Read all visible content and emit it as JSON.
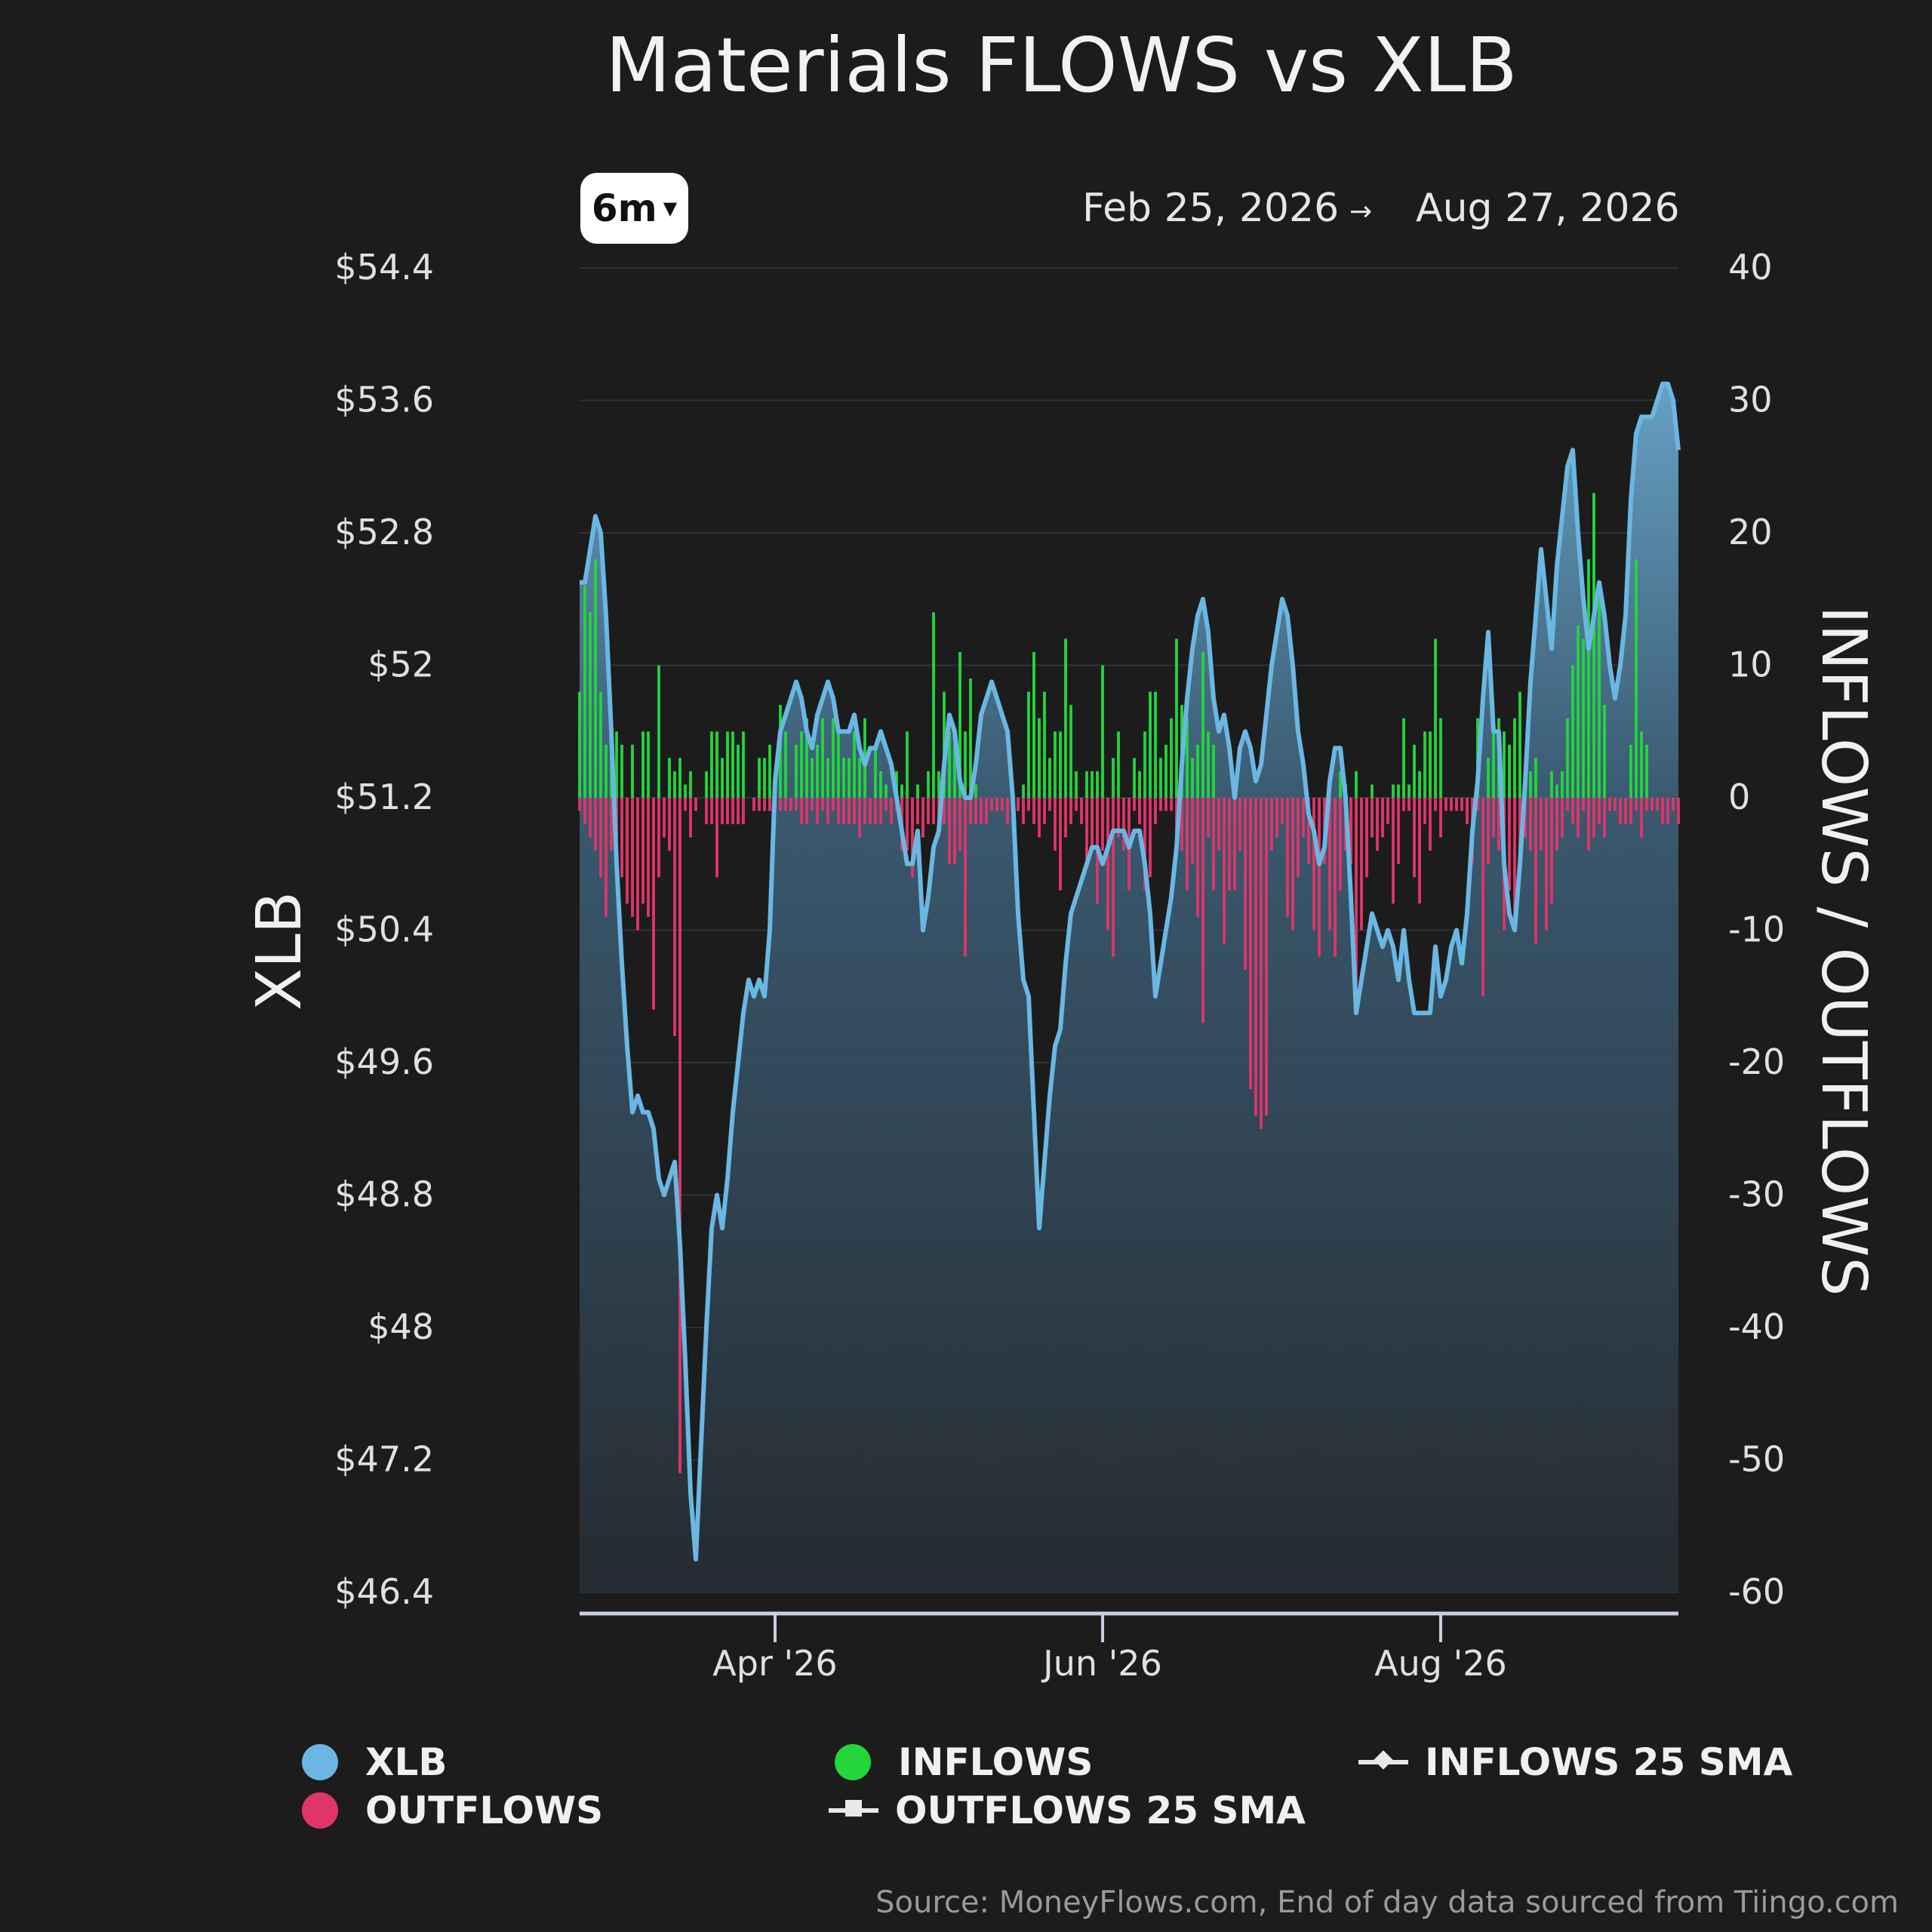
{
  "title": "Materials FLOWS vs XLB",
  "range_selector": {
    "label": "6m"
  },
  "date_range": {
    "start": "Feb 25, 2026",
    "arrow": "→",
    "end": "Aug 27, 2026"
  },
  "source": "Source: MoneyFlows.com, End of day data sourced from Tiingo.com",
  "colors": {
    "xlb": "#6ab7e3",
    "inflows": "#22d63c",
    "outflows": "#e0356a",
    "background": "#1c1c1c"
  },
  "legend": [
    {
      "label": "XLB",
      "symbol": "dot",
      "color": "#6ab7e3"
    },
    {
      "label": "INFLOWS",
      "symbol": "dot",
      "color": "#22d63c"
    },
    {
      "label": "INFLOWS 25 SMA",
      "symbol": "line-diamond",
      "color": "#e8e8e8"
    },
    {
      "label": "OUTFLOWS",
      "symbol": "dot",
      "color": "#e0356a"
    },
    {
      "label": "OUTFLOWS 25 SMA",
      "symbol": "line-square",
      "color": "#e8e8e8"
    }
  ],
  "chart_data": {
    "type": "bar",
    "title": "Materials FLOWS vs XLB",
    "ylabel_left": "XLB",
    "ylabel_right": "INFLOWS / OUTFLOWS",
    "y_left": {
      "min": 46.4,
      "max": 54.4,
      "ticks": [
        "$54.4",
        "$53.6",
        "$52.8",
        "$52",
        "$51.2",
        "$50.4",
        "$49.6",
        "$48.8",
        "$48",
        "$47.2",
        "$46.4"
      ]
    },
    "y_right": {
      "min": -60,
      "max": 40,
      "ticks": [
        "40",
        "30",
        "20",
        "10",
        "0",
        "-10",
        "-20",
        "-30",
        "-40",
        "-50",
        "-60"
      ]
    },
    "x_ticks": [
      {
        "label": "Apr '26",
        "index": 37
      },
      {
        "label": "Jun '26",
        "index": 99
      },
      {
        "label": "Aug '26",
        "index": 163
      }
    ],
    "grid": true,
    "legend_position": "bottom",
    "series": [
      {
        "name": "XLB",
        "kind": "area-line",
        "values": [
          52.5,
          52.5,
          52.7,
          52.9,
          52.8,
          52.3,
          51.6,
          50.8,
          50.2,
          49.7,
          49.3,
          49.4,
          49.3,
          49.3,
          49.2,
          48.9,
          48.8,
          48.9,
          49.0,
          48.5,
          47.8,
          47.0,
          46.6,
          47.3,
          48.0,
          48.6,
          48.8,
          48.6,
          48.9,
          49.3,
          49.6,
          49.9,
          50.1,
          50.0,
          50.1,
          50.0,
          50.4,
          51.3,
          51.6,
          51.7,
          51.8,
          51.9,
          51.8,
          51.6,
          51.5,
          51.7,
          51.8,
          51.9,
          51.8,
          51.6,
          51.6,
          51.6,
          51.7,
          51.5,
          51.4,
          51.5,
          51.5,
          51.6,
          51.5,
          51.4,
          51.2,
          51.0,
          50.8,
          50.8,
          51.0,
          50.4,
          50.6,
          50.9,
          51.0,
          51.4,
          51.7,
          51.6,
          51.3,
          51.2,
          51.2,
          51.4,
          51.7,
          51.8,
          51.9,
          51.8,
          51.7,
          51.6,
          51.2,
          50.5,
          50.1,
          50.0,
          49.3,
          48.6,
          49.0,
          49.4,
          49.7,
          49.8,
          50.2,
          50.5,
          50.6,
          50.7,
          50.8,
          50.9,
          50.9,
          50.8,
          50.9,
          51.0,
          51.0,
          51.0,
          50.9,
          51.0,
          51.0,
          50.8,
          50.5,
          50.0,
          50.2,
          50.4,
          50.6,
          50.9,
          51.4,
          51.8,
          52.1,
          52.3,
          52.4,
          52.2,
          51.8,
          51.6,
          51.7,
          51.5,
          51.2,
          51.5,
          51.6,
          51.5,
          51.3,
          51.4,
          51.7,
          52.0,
          52.2,
          52.4,
          52.3,
          52.0,
          51.6,
          51.4,
          51.1,
          51.0,
          50.8,
          50.9,
          51.3,
          51.5,
          51.5,
          51.2,
          50.6,
          49.9,
          50.1,
          50.3,
          50.5,
          50.4,
          50.3,
          50.4,
          50.3,
          50.1,
          50.4,
          50.1,
          49.9,
          49.9,
          49.9,
          49.9,
          50.3,
          50.0,
          50.1,
          50.3,
          50.4,
          50.2,
          50.5,
          51.0,
          51.3,
          51.8,
          52.2,
          51.6,
          51.6,
          50.8,
          50.5,
          50.4,
          50.8,
          51.3,
          51.9,
          52.3,
          52.7,
          52.4,
          52.1,
          52.6,
          52.9,
          53.2,
          53.3,
          52.8,
          52.4,
          52.1,
          52.3,
          52.5,
          52.3,
          52.0,
          51.8,
          52.0,
          52.3,
          53.0,
          53.4,
          53.5,
          53.5,
          53.5,
          53.6,
          53.7,
          53.7,
          53.6,
          53.3
        ]
      },
      {
        "name": "INFLOWS",
        "kind": "bar",
        "values": [
          8,
          16,
          14,
          18,
          8,
          4,
          5,
          5,
          4,
          0,
          4,
          0,
          5,
          5,
          0,
          10,
          0,
          3,
          2,
          3,
          1,
          2,
          0,
          0,
          2,
          5,
          5,
          3,
          5,
          5,
          4,
          5,
          0,
          0,
          3,
          3,
          4,
          0,
          7,
          5,
          0,
          4,
          5,
          6,
          3,
          4,
          6,
          3,
          6,
          5,
          3,
          3,
          5,
          3,
          6,
          0,
          4,
          2,
          1,
          0,
          2,
          1,
          5,
          0,
          1,
          0,
          2,
          14,
          2,
          8,
          5,
          4,
          11,
          5,
          9,
          1,
          0,
          0,
          0,
          0,
          0,
          0,
          0,
          0,
          1,
          8,
          11,
          6,
          8,
          3,
          5,
          5,
          12,
          7,
          2,
          0,
          2,
          2,
          2,
          10,
          0,
          3,
          5,
          0,
          0,
          3,
          2,
          5,
          8,
          8,
          3,
          4,
          6,
          12,
          7,
          6,
          3,
          4,
          11,
          5,
          4,
          0,
          0,
          0,
          0,
          0,
          0,
          0,
          0,
          0,
          0,
          0,
          0,
          0,
          0,
          0,
          0,
          0,
          0,
          0,
          0,
          0,
          0,
          0,
          2,
          1,
          0,
          2,
          0,
          0,
          1,
          0,
          0,
          0,
          1,
          1,
          6,
          1,
          4,
          2,
          5,
          5,
          12,
          6,
          0,
          0,
          0,
          0,
          0,
          0,
          6,
          0,
          3,
          5,
          6,
          5,
          4,
          6,
          8,
          2,
          2,
          3,
          0,
          0,
          2,
          1,
          2,
          6,
          10,
          13,
          12,
          18,
          23,
          16,
          7,
          0,
          0,
          0,
          0,
          4,
          18,
          5,
          4,
          0,
          0,
          0,
          0,
          0,
          0,
          0,
          0,
          0,
          0,
          0,
          0,
          0,
          0,
          2,
          0,
          6
        ]
      },
      {
        "name": "OUTFLOWS",
        "kind": "bar",
        "values": [
          -1,
          -2,
          -3,
          -4,
          -6,
          -9,
          -4,
          -5,
          -6,
          -8,
          -9,
          -10,
          -8,
          -9,
          -16,
          -6,
          -3,
          -4,
          -18,
          -51,
          -1,
          -3,
          -1,
          0,
          -2,
          -2,
          -6,
          -2,
          -2,
          -2,
          -2,
          -2,
          0,
          -1,
          -1,
          -1,
          -1,
          -1,
          -1,
          -1,
          -1,
          -1,
          -2,
          -2,
          -1,
          -2,
          -1,
          -2,
          -1,
          -2,
          -2,
          -2,
          -2,
          -3,
          -2,
          -2,
          -2,
          -2,
          -1,
          -2,
          -1,
          -4,
          -4,
          -6,
          -2,
          -3,
          -2,
          -2,
          -3,
          -2,
          -5,
          -5,
          -4,
          -12,
          -2,
          -2,
          -2,
          -2,
          -1,
          -1,
          -1,
          -2,
          -2,
          -1,
          -2,
          -1,
          -2,
          -3,
          -2,
          -1,
          -4,
          -7,
          -3,
          -2,
          -1,
          -2,
          -5,
          -4,
          -8,
          -4,
          -10,
          -12,
          -3,
          -4,
          -7,
          -1,
          -2,
          -7,
          -6,
          -2,
          -1,
          -1,
          -1,
          -3,
          -4,
          -7,
          -5,
          -9,
          -17,
          -3,
          -7,
          -4,
          -11,
          -7,
          -7,
          -4,
          -13,
          -22,
          -24,
          -25,
          -24,
          -4,
          -3,
          -2,
          -9,
          -10,
          -6,
          -3,
          -5,
          -10,
          -12,
          -5,
          -10,
          -12,
          -7,
          -4,
          -5,
          -16,
          -10,
          -6,
          -3,
          -4,
          -3,
          -2,
          -8,
          -5,
          -1,
          -1,
          -6,
          -8,
          -2,
          -4,
          -1,
          -3,
          -1,
          -1,
          -1,
          -1,
          -2,
          -5,
          -1,
          -15,
          -5,
          -3,
          -4,
          -10,
          -7,
          -9,
          -4,
          -3,
          -4,
          -11,
          -4,
          -10,
          -8,
          -4,
          -3,
          -1,
          -2,
          -3,
          -1,
          -4,
          -3,
          -2,
          -3,
          -1,
          -1,
          -2,
          -2,
          -2,
          -1,
          -3,
          -1,
          -1,
          -1,
          -2,
          -2,
          -1,
          -2,
          -3,
          -2,
          -2,
          -1,
          -1,
          -1,
          -1,
          -1
        ]
      }
    ]
  }
}
